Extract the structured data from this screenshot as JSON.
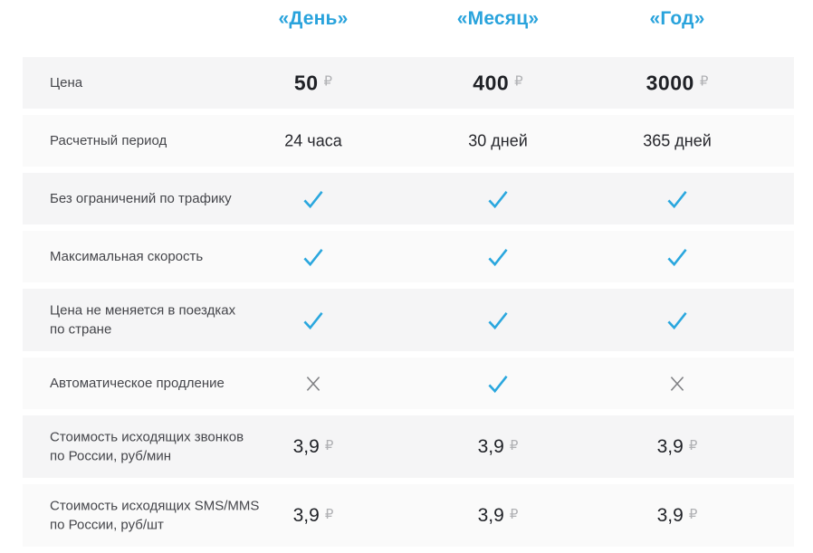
{
  "colors": {
    "accent": "#29a3dc",
    "check": "#2aa7de",
    "cross": "#808184",
    "currency_muted": "#b0b1b4"
  },
  "table": {
    "columns": [
      "«День»",
      "«Месяц»",
      "«Год»"
    ],
    "currency_symbol": "₽",
    "rows": [
      {
        "label": "Цена",
        "kind": "price",
        "emphasis": "bold",
        "values": [
          {
            "amount": "50",
            "currency": "₽"
          },
          {
            "amount": "400",
            "currency": "₽"
          },
          {
            "amount": "3000",
            "currency": "₽"
          }
        ]
      },
      {
        "label": "Расчетный период",
        "kind": "text",
        "values": [
          "24 часа",
          "30 дней",
          "365 дней"
        ]
      },
      {
        "label": "Без ограничений по трафику",
        "kind": "mark",
        "values": [
          "check",
          "check",
          "check"
        ]
      },
      {
        "label": "Максимальная скорость",
        "kind": "mark",
        "values": [
          "check",
          "check",
          "check"
        ]
      },
      {
        "label": "Цена не меняется в поездках\nпо стране",
        "kind": "mark",
        "values": [
          "check",
          "check",
          "check"
        ]
      },
      {
        "label": "Автоматическое продление",
        "kind": "mark",
        "values": [
          "cross",
          "check",
          "cross"
        ]
      },
      {
        "label": "Стоимость исходящих звонков\nпо России, руб/мин",
        "kind": "price",
        "emphasis": "regular",
        "values": [
          {
            "amount": "3,9",
            "currency": "₽"
          },
          {
            "amount": "3,9",
            "currency": "₽"
          },
          {
            "amount": "3,9",
            "currency": "₽"
          }
        ]
      },
      {
        "label": "Стоимость исходящих SMS/MMS\nпо России, руб/шт",
        "kind": "price",
        "emphasis": "regular",
        "values": [
          {
            "amount": "3,9",
            "currency": "₽"
          },
          {
            "amount": "3,9",
            "currency": "₽"
          },
          {
            "amount": "3,9",
            "currency": "₽"
          }
        ]
      }
    ]
  }
}
